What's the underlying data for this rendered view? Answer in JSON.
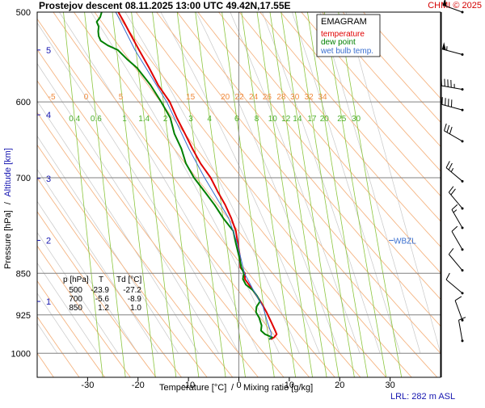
{
  "header": {
    "title": "Prostejov  descent  08.11.2025 13:00 UTC  49.42N,17.55E",
    "credit": "CHMI © 2025"
  },
  "colors": {
    "temperature": "#e00000",
    "dew_point": "#008000",
    "wet_bulb": "#3a6fd0",
    "dry_adiabat": "#f5b583",
    "isotherm_label": "#f08a3c",
    "mixing_ratio": "#8cc63f",
    "moist_adiabat": "#c8c8c8",
    "pressure_line": "#808080",
    "altitude": "#1515b0",
    "credit": "#d40000"
  },
  "chart_data": {
    "type": "line",
    "subtype": "emagram",
    "title": "EMAGRAM",
    "xlabel": "Temperature [°C]  /  Mixing ratio [g/kg]",
    "xlabel_temperature": "Temperature [°C]",
    "xlabel_sep": "/",
    "xlabel_mixing": "Mixing ratio [g/kg]",
    "ylabel": "Pressure [hPa]  /  Altitude [km]",
    "ylabel_pressure": "Pressure [hPa]",
    "ylabel_sep": "/",
    "ylabel_altitude": "Altitude [km]",
    "x_range": [
      -40,
      40
    ],
    "x_ticks": [
      -30,
      -20,
      -10,
      0,
      10,
      20,
      30
    ],
    "y_range_hpa": [
      500,
      1050
    ],
    "y_scale": "log",
    "pressure_ticks": [
      500,
      600,
      700,
      850,
      925,
      1000
    ],
    "altitude_ticks_km": [
      {
        "km": 1,
        "hpa": 900
      },
      {
        "km": 2,
        "hpa": 795
      },
      {
        "km": 3,
        "hpa": 701
      },
      {
        "km": 4,
        "hpa": 616
      },
      {
        "km": 5,
        "hpa": 540
      }
    ],
    "isotherm_labels_600": [
      {
        "label": "-5",
        "t": -37.1
      },
      {
        "label": "0",
        "t": -30.3
      },
      {
        "label": "5",
        "t": -23.4
      },
      {
        "label": "15",
        "t": -9.6
      },
      {
        "label": "20",
        "t": -2.7
      },
      {
        "label": "22",
        "t": 0.1
      },
      {
        "label": "24",
        "t": 2.9
      },
      {
        "label": "26",
        "t": 5.6
      },
      {
        "label": "28",
        "t": 8.4
      },
      {
        "label": "30",
        "t": 11.1
      },
      {
        "label": "32",
        "t": 13.9
      },
      {
        "label": "34",
        "t": 16.6
      }
    ],
    "mixing_ratio_lines": [
      0.4,
      0.6,
      1,
      1.4,
      2,
      3,
      4,
      6,
      8,
      10,
      12,
      14,
      17,
      20,
      25,
      30
    ],
    "mixing_ratio_labels": [
      "0.4",
      "0.6",
      "1",
      "1.4",
      "2",
      "3",
      "4",
      "6",
      "8",
      "10",
      "12",
      "14",
      "17",
      "20",
      "25",
      "30"
    ],
    "legend": {
      "title": "EMAGRAM",
      "placement": "top-right",
      "items": [
        {
          "name": "temperature",
          "color": "#e00000"
        },
        {
          "name": "dew point",
          "color": "#008000"
        },
        {
          "name": "wet bulb temp.",
          "color": "#3a6fd0"
        }
      ]
    },
    "series": [
      {
        "name": "temperature",
        "color": "#e00000",
        "points": [
          [
            500,
            -23.9
          ],
          [
            510,
            -22.8
          ],
          [
            520,
            -21.8
          ],
          [
            540,
            -19.8
          ],
          [
            560,
            -17.8
          ],
          [
            580,
            -16.0
          ],
          [
            600,
            -13.7
          ],
          [
            620,
            -12.3
          ],
          [
            640,
            -10.7
          ],
          [
            660,
            -9.2
          ],
          [
            680,
            -7.6
          ],
          [
            700,
            -5.6
          ],
          [
            720,
            -4.2
          ],
          [
            740,
            -2.7
          ],
          [
            760,
            -1.5
          ],
          [
            780,
            -0.6
          ],
          [
            800,
            -0.2
          ],
          [
            820,
            0.2
          ],
          [
            840,
            0.3
          ],
          [
            850,
            1.2
          ],
          [
            860,
            1.2
          ],
          [
            870,
            2.0
          ],
          [
            880,
            2.8
          ],
          [
            900,
            4.3
          ],
          [
            920,
            5.5
          ],
          [
            940,
            6.5
          ],
          [
            955,
            7.2
          ],
          [
            962,
            7.5
          ],
          [
            968,
            7.0
          ],
          [
            972,
            6.3
          ]
        ]
      },
      {
        "name": "dew point",
        "color": "#008000",
        "points": [
          [
            500,
            -27.2
          ],
          [
            505,
            -27.5
          ],
          [
            510,
            -28.2
          ],
          [
            515,
            -27.8
          ],
          [
            520,
            -27.9
          ],
          [
            525,
            -27.8
          ],
          [
            530,
            -27.4
          ],
          [
            535,
            -26.0
          ],
          [
            540,
            -24.0
          ],
          [
            550,
            -22.2
          ],
          [
            560,
            -20.2
          ],
          [
            580,
            -17.5
          ],
          [
            600,
            -15.4
          ],
          [
            620,
            -13.6
          ],
          [
            640,
            -12.8
          ],
          [
            660,
            -11.4
          ],
          [
            680,
            -10.5
          ],
          [
            700,
            -8.9
          ],
          [
            720,
            -6.8
          ],
          [
            740,
            -4.8
          ],
          [
            760,
            -3.1
          ],
          [
            780,
            -1.1
          ],
          [
            800,
            -0.6
          ],
          [
            820,
            0.0
          ],
          [
            840,
            0.5
          ],
          [
            850,
            1.0
          ],
          [
            860,
            0.8
          ],
          [
            870,
            1.4
          ],
          [
            880,
            2.8
          ],
          [
            890,
            3.6
          ],
          [
            900,
            4.2
          ],
          [
            910,
            3.5
          ],
          [
            920,
            3.4
          ],
          [
            930,
            4.0
          ],
          [
            945,
            4.5
          ],
          [
            955,
            4.4
          ],
          [
            962,
            5.2
          ],
          [
            968,
            6.6
          ],
          [
            972,
            6.0
          ]
        ]
      },
      {
        "name": "wet bulb temp.",
        "color": "#3a6fd0",
        "points": [
          [
            500,
            -24.4
          ],
          [
            540,
            -20.6
          ],
          [
            600,
            -14.3
          ],
          [
            660,
            -9.9
          ],
          [
            700,
            -6.8
          ],
          [
            760,
            -2.0
          ],
          [
            800,
            -0.3
          ],
          [
            850,
            1.1
          ],
          [
            880,
            2.9
          ],
          [
            910,
            4.8
          ],
          [
            940,
            5.7
          ],
          [
            962,
            6.5
          ],
          [
            972,
            6.1
          ]
        ]
      }
    ],
    "wind_barbs": [
      {
        "hpa": 500,
        "dir": 290,
        "kt": 50
      },
      {
        "hpa": 545,
        "dir": 285,
        "kt": 55
      },
      {
        "hpa": 585,
        "dir": 280,
        "kt": 45
      },
      {
        "hpa": 610,
        "dir": 285,
        "kt": 40
      },
      {
        "hpa": 650,
        "dir": 300,
        "kt": 30
      },
      {
        "hpa": 705,
        "dir": 310,
        "kt": 25
      },
      {
        "hpa": 745,
        "dir": 320,
        "kt": 20
      },
      {
        "hpa": 775,
        "dir": 330,
        "kt": 15
      },
      {
        "hpa": 810,
        "dir": 330,
        "kt": 10
      },
      {
        "hpa": 845,
        "dir": 320,
        "kt": 10
      },
      {
        "hpa": 885,
        "dir": 310,
        "kt": 10
      },
      {
        "hpa": 935,
        "dir": 340,
        "kt": 10
      },
      {
        "hpa": 975,
        "dir": 350,
        "kt": 10
      }
    ],
    "wbzl": {
      "label": "WBZL",
      "hpa": 795
    },
    "table": {
      "headers": [
        "p [hPa]",
        "T",
        "Td [°C]"
      ],
      "rows": [
        [
          "500",
          "-23.9",
          "-27.2"
        ],
        [
          "700",
          "-5.6",
          "-8.9"
        ],
        [
          "850",
          "1.2",
          "1.0"
        ]
      ]
    },
    "lrl": "LRL: 282 m ASL",
    "grid": true
  }
}
